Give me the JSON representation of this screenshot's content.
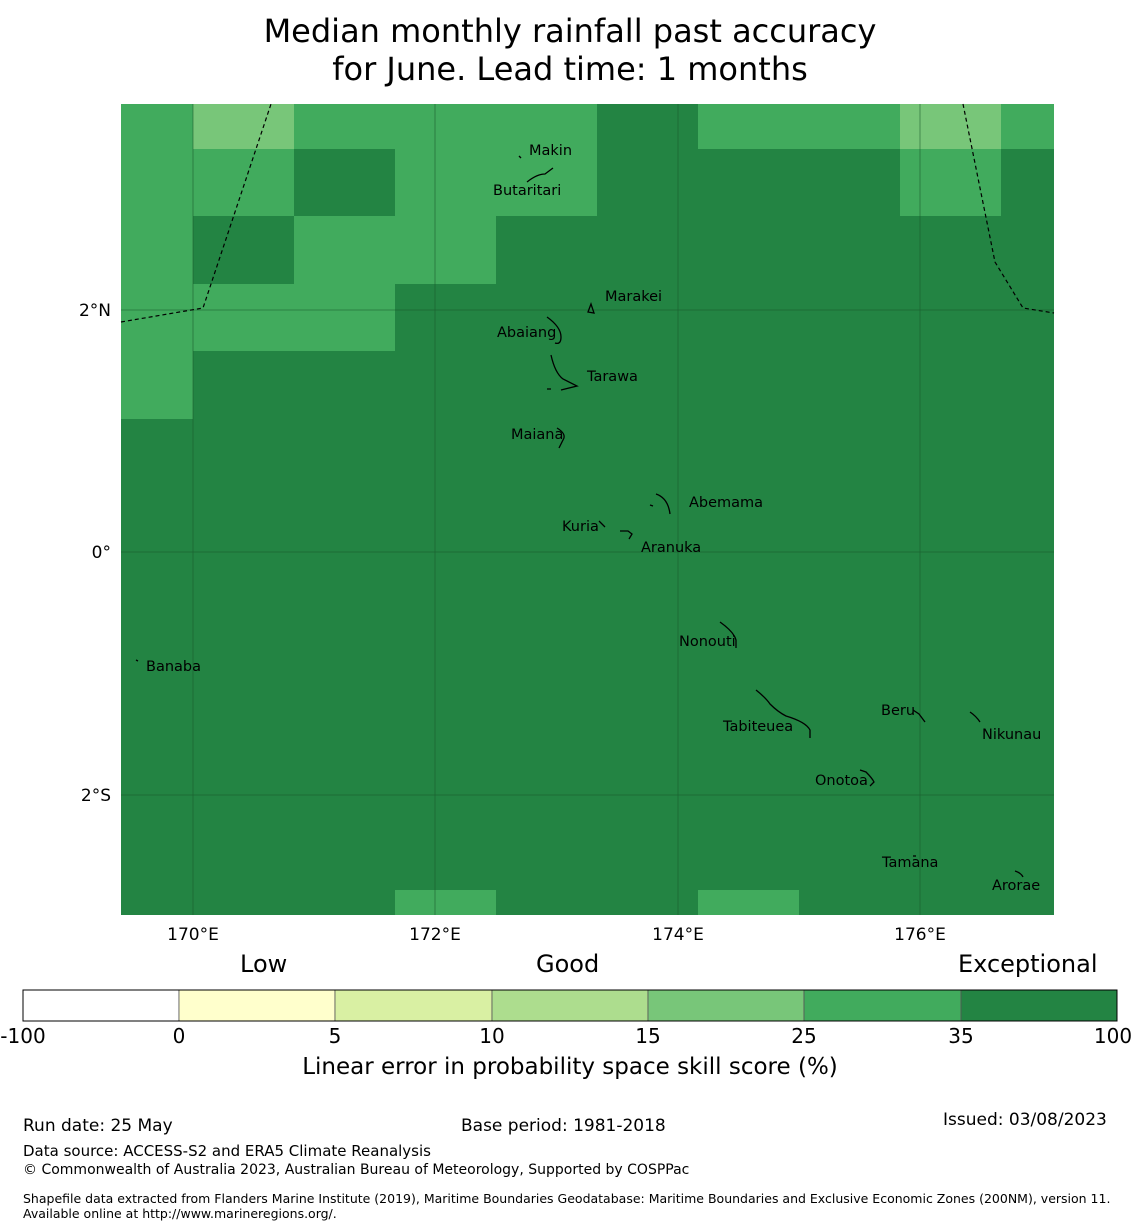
{
  "title_line1": "Median monthly rainfall past accuracy",
  "title_line2": "for June. Lead time: 1 months",
  "map": {
    "lon_labels": [
      "170°E",
      "172°E",
      "174°E",
      "176°E"
    ],
    "lat_labels": [
      "2°N",
      "0°",
      "2°S"
    ],
    "islands": [
      {
        "name": "Makin"
      },
      {
        "name": "Butaritari"
      },
      {
        "name": "Marakei"
      },
      {
        "name": "Abaiang"
      },
      {
        "name": "Tarawa"
      },
      {
        "name": "Maiana"
      },
      {
        "name": "Abemama"
      },
      {
        "name": "Kuria"
      },
      {
        "name": "Aranuka"
      },
      {
        "name": "Nonouti"
      },
      {
        "name": "Banaba"
      },
      {
        "name": "Beru"
      },
      {
        "name": "Tabiteuea"
      },
      {
        "name": "Nikunau"
      },
      {
        "name": "Onotoa"
      },
      {
        "name": "Tamana"
      },
      {
        "name": "Arorae"
      }
    ]
  },
  "legend": {
    "categories": [
      "Low",
      "Good",
      "Exceptional"
    ],
    "ticks": [
      "-100",
      "0",
      "5",
      "10",
      "15",
      "25",
      "35",
      "100"
    ],
    "colors": [
      "#ffffff",
      "#ffffcc",
      "#d9f0a3",
      "#addd8e",
      "#78c679",
      "#41ab5d",
      "#238443"
    ],
    "label": "Linear error in probability space skill score (%)"
  },
  "footer": {
    "run_date": "Run date: 25 May",
    "base_period": "Base period: 1981-2018",
    "issued": "Issued: 03/08/2023",
    "data_source": "Data source: ACCESS-S2 and ERA5 Climate Reanalysis",
    "copyright": "© Commonwealth of Australia 2023, Australian Bureau of Meteorology, Supported by COSPPac",
    "shapefile": "Shapefile data extracted from Flanders Marine Institute (2019), Maritime Boundaries Geodatabase: Maritime Boundaries and Exclusive Economic Zones (200NM), version 11. Available online at http://www.marineregions.org/."
  }
}
